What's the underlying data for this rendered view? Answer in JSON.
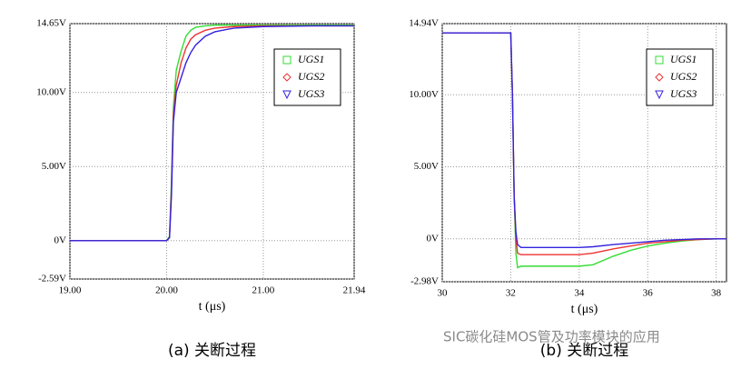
{
  "chart_data": [
    {
      "type": "line",
      "caption": "(a) 关断过程",
      "xlabel": "t (μs)",
      "x": [
        19.0,
        19.5,
        20.0,
        20.03,
        20.05,
        20.07,
        20.1,
        20.15,
        20.2,
        20.25,
        20.3,
        20.4,
        20.5,
        20.7,
        21.0,
        21.5,
        21.94
      ],
      "series": [
        {
          "name": "UGS1",
          "color": "#33dd33",
          "marker": "square",
          "values": [
            0,
            0,
            0,
            0.3,
            4,
            9,
            11.5,
            12.8,
            13.8,
            14.2,
            14.4,
            14.5,
            14.55,
            14.55,
            14.55,
            14.55,
            14.55
          ]
        },
        {
          "name": "UGS2",
          "color": "#ee3333",
          "marker": "diamond",
          "values": [
            0,
            0,
            0,
            0.2,
            3.5,
            8.5,
            10.5,
            12,
            13,
            13.6,
            13.9,
            14.2,
            14.35,
            14.45,
            14.5,
            14.5,
            14.5
          ]
        },
        {
          "name": "UGS3",
          "color": "#3322dd",
          "marker": "triangle",
          "values": [
            0,
            0,
            0,
            0.2,
            3,
            8,
            10,
            11,
            12,
            12.7,
            13.2,
            13.8,
            14.1,
            14.35,
            14.45,
            14.5,
            14.5
          ]
        }
      ],
      "xlim": [
        19.0,
        21.94
      ],
      "xticks": [
        {
          "value": 19.0,
          "label": "19.00"
        },
        {
          "value": 20.0,
          "label": "20.00"
        },
        {
          "value": 21.0,
          "label": "21.00"
        },
        {
          "value": 21.94,
          "label": "21.94"
        }
      ],
      "ylim": [
        -2.59,
        14.65
      ],
      "yticks": [
        {
          "value": -2.59,
          "label": "-2.59V"
        },
        {
          "value": 0,
          "label": "0V"
        },
        {
          "value": 5,
          "label": "5.00V"
        },
        {
          "value": 10,
          "label": "10.00V"
        },
        {
          "value": 14.65,
          "label": "14.65V"
        }
      ],
      "grid": true,
      "legend": "upper right"
    },
    {
      "type": "line",
      "caption": "(b) 关断过程",
      "xlabel": "t (μs)",
      "x": [
        30,
        31.5,
        32.0,
        32.05,
        32.1,
        32.15,
        32.2,
        32.3,
        32.5,
        33,
        34,
        34.4,
        35,
        35.5,
        36,
        36.5,
        37,
        37.5,
        38,
        38.3
      ],
      "series": [
        {
          "name": "UGS1",
          "color": "#33dd33",
          "marker": "square",
          "values": [
            14.3,
            14.3,
            14.3,
            10,
            3,
            -1,
            -2,
            -1.9,
            -1.9,
            -1.9,
            -1.9,
            -1.8,
            -1.2,
            -0.8,
            -0.5,
            -0.3,
            -0.15,
            -0.05,
            0,
            0
          ]
        },
        {
          "name": "UGS2",
          "color": "#ee3333",
          "marker": "diamond",
          "values": [
            14.3,
            14.3,
            14.3,
            10,
            3,
            0,
            -1,
            -1.1,
            -1.1,
            -1.1,
            -1.1,
            -1.0,
            -0.7,
            -0.5,
            -0.3,
            -0.2,
            -0.1,
            -0.05,
            0,
            0
          ]
        },
        {
          "name": "UGS3",
          "color": "#3322dd",
          "marker": "triangle",
          "values": [
            14.3,
            14.3,
            14.3,
            10,
            3,
            0.5,
            -0.4,
            -0.6,
            -0.6,
            -0.6,
            -0.6,
            -0.55,
            -0.4,
            -0.3,
            -0.2,
            -0.1,
            -0.05,
            0,
            0,
            0
          ]
        }
      ],
      "xlim": [
        30,
        38.3
      ],
      "xticks": [
        30,
        32,
        34,
        36,
        38
      ],
      "ylim": [
        -2.98,
        14.94
      ],
      "yticks": [
        {
          "value": -2.98,
          "label": "-2.98V"
        },
        {
          "value": 0,
          "label": "0V"
        },
        {
          "value": 5,
          "label": "5.00V"
        },
        {
          "value": 10,
          "label": "10.00V"
        },
        {
          "value": 14.94,
          "label": "14.94V"
        }
      ],
      "grid": true,
      "legend": "upper right"
    }
  ],
  "watermark": "SIC碳化硅MOS管及功率模块的应用"
}
